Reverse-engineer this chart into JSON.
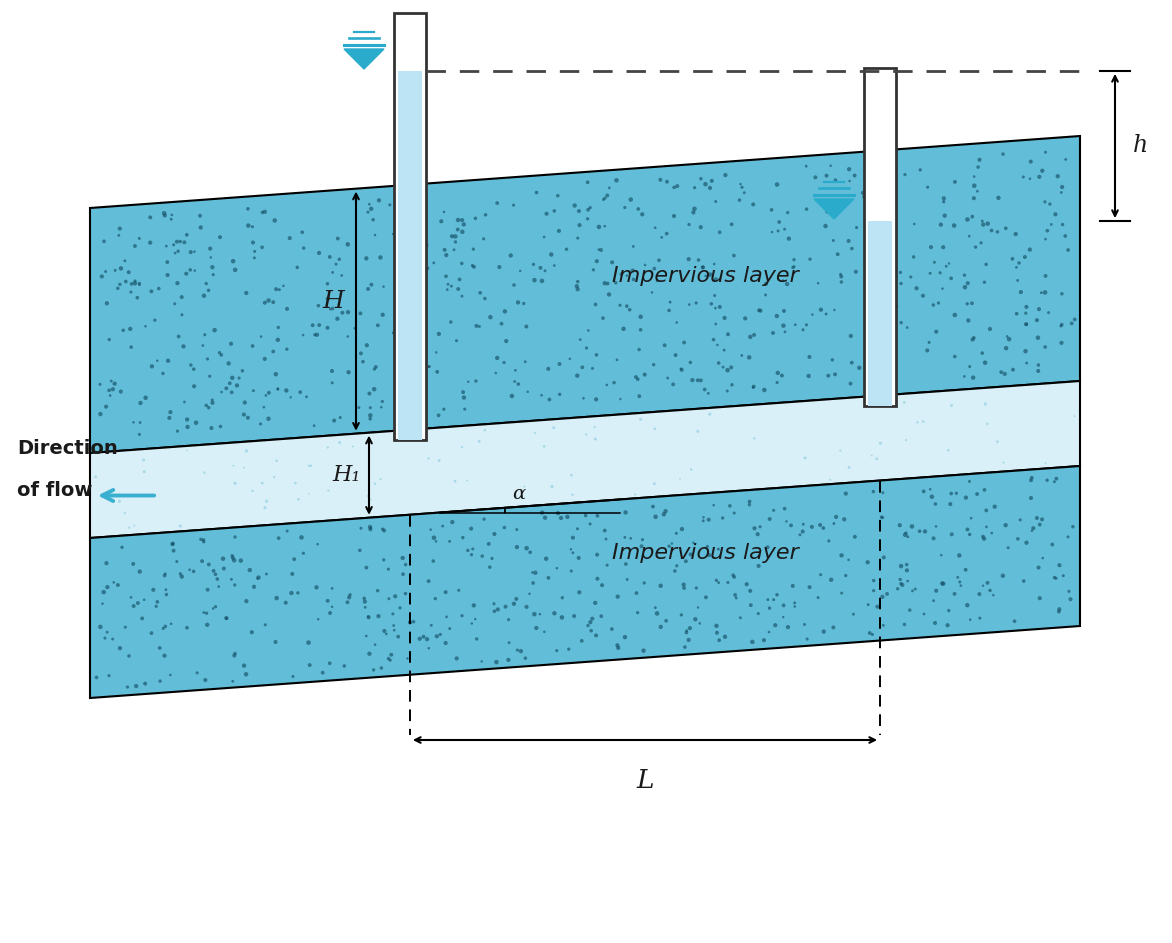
{
  "bg_color": "#ffffff",
  "soil_dark_color": "#62bdd8",
  "soil_light_color": "#c8e8f5",
  "permeable_color": "#daf0f8",
  "tube_color": "#bde4f5",
  "tube_edge_color": "#333333",
  "dashed_color": "#444444",
  "arrow_color": "#3ab0d0",
  "text_color": "#1a1a1a",
  "speckle_color": "#1a4f6e",
  "label_h": "H",
  "label_h1": "H₁",
  "label_h_small": "h",
  "label_L": "L",
  "label_alpha": "α",
  "label_imp1": "Impervious layer",
  "label_imp2": "Impervious layer",
  "label_dir1": "Direction",
  "label_dir2": "of flow",
  "figsize": [
    11.72,
    9.43
  ],
  "dpi": 100
}
